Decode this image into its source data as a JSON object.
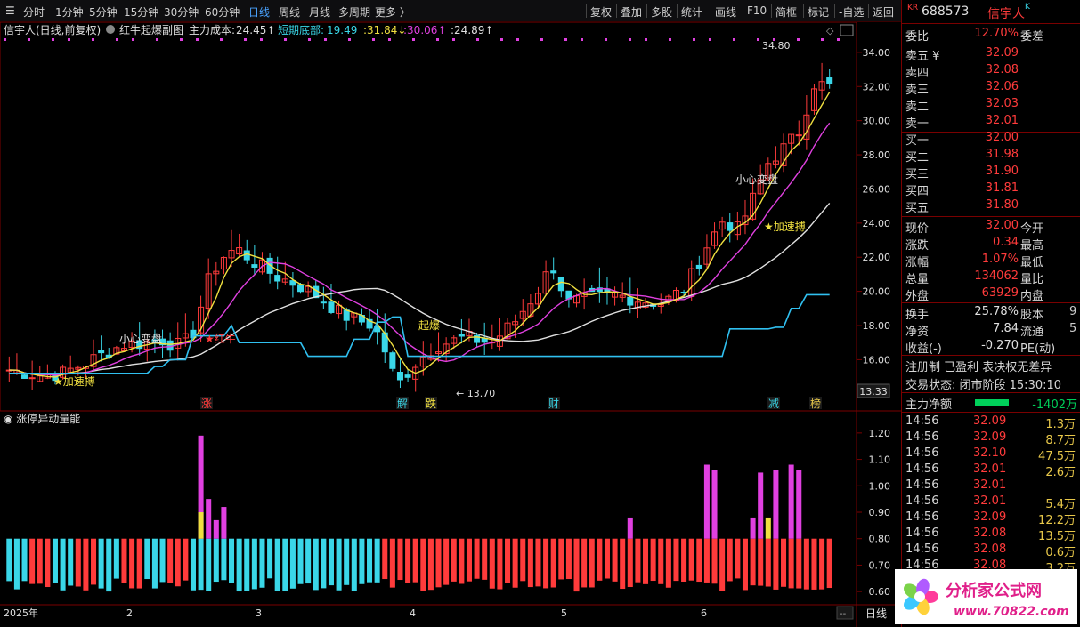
{
  "toolbar": {
    "items": [
      "分时",
      "1分钟",
      "5分钟",
      "15分钟",
      "30分钟",
      "60分钟",
      "日线",
      "周线",
      "月线",
      "多周期",
      "更多 〉"
    ],
    "active": "日线",
    "right_items": [
      "复权",
      "叠加",
      "多股",
      "统计",
      "画线",
      "F10",
      "简框",
      "标记",
      "-自选",
      "返回"
    ]
  },
  "main_header": {
    "stock": "信宇人(日线,前复权)",
    "indicator": "红牛起爆副图",
    "cost_label": "主力成本:",
    "cost_value": "24.45↑",
    "short_label": "短期底部:",
    "short_value": "19.49",
    "v2": "31.84↓",
    "v3": "30.06↑",
    "v4": "24.89↑"
  },
  "price_axis": [
    "34.00",
    "32.00",
    "30.00",
    "28.00",
    "26.00",
    "24.00",
    "22.00",
    "20.00",
    "18.00",
    "16.00",
    "14.00"
  ],
  "current_price_tag": "13.33",
  "annotations": {
    "high": "34.80",
    "low": "13.70",
    "t1": "小心变盘",
    "t2": "小心变盘",
    "t3": "★加速搏",
    "t4": "★加速搏",
    "t5": "★红牛",
    "t6": "起爆"
  },
  "markers": [
    "涨",
    "解",
    "跌",
    "财",
    "减",
    "榜"
  ],
  "sub_header": "涨停异动量能",
  "sub_axis": [
    "1.20",
    "1.10",
    "1.00",
    "0.90",
    "0.80",
    "0.70",
    "0.60"
  ],
  "time_axis": [
    "2025年",
    "2",
    "3",
    "4",
    "5",
    "6"
  ],
  "period_label": "日线",
  "quote": {
    "prefix": "KR",
    "code": "688573",
    "name": "信宇人",
    "suffix": "K",
    "weibi_label": "委比",
    "weibi": "12.70%",
    "weicha_label": "委差",
    "sells": [
      {
        "label": "卖五 ¥",
        "price": "32.09"
      },
      {
        "label": "卖四",
        "price": "32.08"
      },
      {
        "label": "卖三",
        "price": "32.06"
      },
      {
        "label": "卖二",
        "price": "32.03"
      },
      {
        "label": "卖一",
        "price": "32.01"
      }
    ],
    "buys": [
      {
        "label": "买一",
        "price": "32.00"
      },
      {
        "label": "买二",
        "price": "31.98"
      },
      {
        "label": "买三",
        "price": "31.90"
      },
      {
        "label": "买四",
        "price": "31.81"
      },
      {
        "label": "买五",
        "price": "31.80"
      }
    ],
    "stats": [
      {
        "l1": "现价",
        "v1": "32.00",
        "l2": "今开"
      },
      {
        "l1": "涨跌",
        "v1": "0.34",
        "l2": "最高"
      },
      {
        "l1": "涨幅",
        "v1": "1.07%",
        "l2": "最低"
      },
      {
        "l1": "总量",
        "v1": "134062",
        "l2": "量比"
      },
      {
        "l1": "外盘",
        "v1": "63929",
        "l2": "内盘"
      }
    ],
    "stats2": [
      {
        "l1": "换手",
        "v1": "25.78%",
        "l2": "股本",
        "v2": "9"
      },
      {
        "l1": "净资",
        "v1": "7.84",
        "l2": "流通",
        "v2": "5"
      },
      {
        "l1": "收益(-)",
        "v1": "-0.270",
        "l2": "PE(动)",
        "v2": ""
      }
    ],
    "flags": "注册制 已盈利 表决权无差异",
    "status": "交易状态: 闭市阶段 15:30:10",
    "netflow_label": "主力净额",
    "netflow": "-1402万",
    "ticks": [
      {
        "t": "14:56",
        "p": "32.09",
        "v": "1.3万"
      },
      {
        "t": "14:56",
        "p": "32.09",
        "v": "8.7万"
      },
      {
        "t": "14:56",
        "p": "32.10",
        "v": "47.5万"
      },
      {
        "t": "14:56",
        "p": "32.01",
        "v": "2.6万"
      },
      {
        "t": "14:56",
        "p": "32.01",
        "v": ""
      },
      {
        "t": "14:56",
        "p": "32.01",
        "v": "5.4万"
      },
      {
        "t": "14:56",
        "p": "32.09",
        "v": "12.2万"
      },
      {
        "t": "14:56",
        "p": "32.08",
        "v": "13.5万"
      },
      {
        "t": "14:56",
        "p": "32.08",
        "v": "0.6万"
      },
      {
        "t": "14:56",
        "p": "32.08",
        "v": "3.2万"
      }
    ]
  },
  "logo": {
    "text": "分析家公式网",
    "url": "www.70822.com"
  },
  "colors": {
    "up": "#ff3b3b",
    "down": "#3ad7e8",
    "ma_yellow": "#f0e040",
    "ma_magenta": "#e040e0",
    "ma_white": "#e0e0e0",
    "support": "#30c0f0"
  }
}
